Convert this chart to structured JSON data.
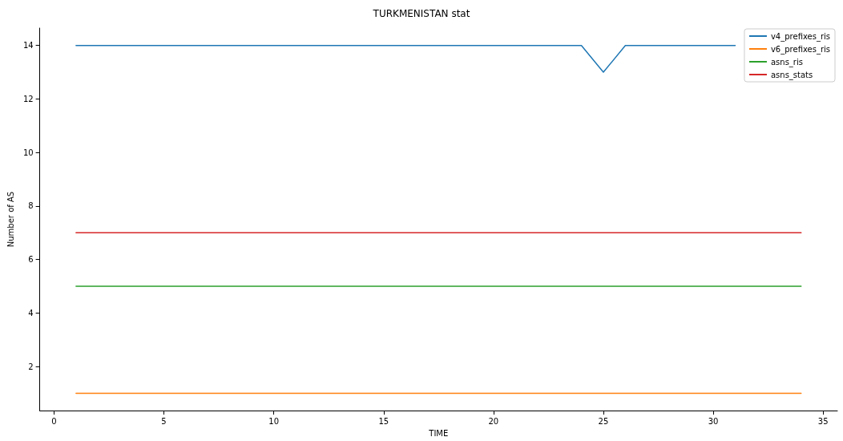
{
  "chart_data": {
    "type": "line",
    "title": "TURKMENISTAN stat",
    "xlabel": "TIME",
    "ylabel": "Number of AS",
    "xlim": [
      -0.65,
      35.65
    ],
    "xticks": [
      0,
      5,
      10,
      15,
      20,
      25,
      30,
      35
    ],
    "ylim": [
      0.35,
      14.65
    ],
    "yticks": [
      2,
      4,
      6,
      8,
      10,
      12,
      14
    ],
    "series": [
      {
        "name": "v4_prefixes_ris",
        "color": "#1f77b4",
        "x": [
          1,
          24,
          25,
          26,
          31
        ],
        "values": [
          14,
          14,
          13,
          14,
          14
        ]
      },
      {
        "name": "v6_prefixes_ris",
        "color": "#ff7f0e",
        "x": [
          1,
          34
        ],
        "values": [
          1,
          1
        ]
      },
      {
        "name": "asns_ris",
        "color": "#2ca02c",
        "x": [
          1,
          34
        ],
        "values": [
          5,
          5
        ]
      },
      {
        "name": "asns_stats",
        "color": "#d62728",
        "x": [
          1,
          34
        ],
        "values": [
          7,
          7
        ]
      }
    ],
    "legend": "top right",
    "grid": false,
    "marker": "none",
    "line_style": "solid"
  }
}
